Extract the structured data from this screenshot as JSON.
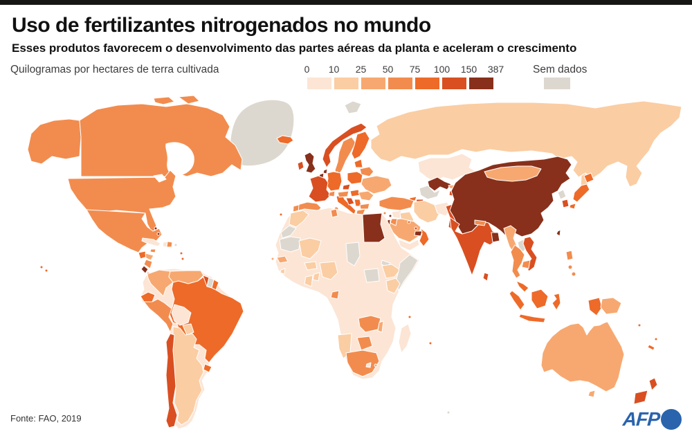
{
  "header": {
    "title": "Uso de fertilizantes nitrogenados no mundo",
    "subtitle": "Esses produtos favorecem o desenvolvimento das partes aéreas da planta e aceleram o crescimento",
    "legend_label": "Quilogramas por hectares de terra cultivada",
    "no_data_label": "Sem dados"
  },
  "footer": {
    "source": "Fonte: FAO, 2019",
    "logo_text": "AFP"
  },
  "brand": {
    "afp_blue": "#2a64ad",
    "bar_black": "#161615"
  },
  "chart_data": {
    "type": "choropleth",
    "title": "Uso de fertilizantes nitrogenados no mundo",
    "unit": "Quilogramas por hectares de terra cultivada",
    "source": "FAO, 2019",
    "scale": {
      "thresholds": [
        0,
        10,
        25,
        50,
        75,
        100,
        150,
        387
      ],
      "tick_labels": [
        "0",
        "10",
        "25",
        "50",
        "75",
        "100",
        "150",
        "387"
      ],
      "colors": [
        "#fce5d5",
        "#fbcda3",
        "#f7a870",
        "#f28c4e",
        "#ee6a28",
        "#d94f21",
        "#88301b"
      ],
      "no_data_color": "#ddd8cf",
      "no_data_label": "Sem dados"
    },
    "regions": {
      "greenland": "nd",
      "svalbard": "nd",
      "russia": 1,
      "sakhalin": 1,
      "canada": 3,
      "alaska": 3,
      "usa": 3,
      "mexico": 3,
      "guatemala": 4,
      "honduras": 2,
      "nicaragua": 3,
      "costa-rica": 6,
      "panama": 3,
      "cuba": 0,
      "jamaica": 3,
      "haiti": 0,
      "dominican-republic": 3,
      "bahamas": 6,
      "puerto-rico": "nd",
      "lesser-antilles": 4,
      "hawaii": 4,
      "south-america-base": 0,
      "colombia": 2,
      "venezuela": 2,
      "guyana": 5,
      "suriname": "nd",
      "french-guiana": 4,
      "ecuador": 4,
      "peru": 3,
      "bolivia": 0,
      "brazil": 4,
      "paraguay": 1,
      "uruguay": 4,
      "argentina": 1,
      "chile": 5,
      "iceland": 4,
      "uk": 6,
      "ireland": 5,
      "norway": 5,
      "sweden": 3,
      "finland": 4,
      "denmark": 4,
      "netherlands": 6,
      "belgium": 6,
      "germany": 4,
      "france": 5,
      "switzerland": 3,
      "austria": 3,
      "czechia": 5,
      "poland": 4,
      "spain": 3,
      "portugal": 3,
      "italy": 4,
      "sicily": 3,
      "sardinia": 3,
      "slovakia-hungary": 4,
      "croatia": 5,
      "serbia": 4,
      "romania": 2,
      "bulgaria": 3,
      "greece": 3,
      "ukraine": 2,
      "belarus": 3,
      "baltics": 4,
      "kazakhstan": 0,
      "uzbekistan": 6,
      "turkmenistan": "nd",
      "kyrgyzstan": 2,
      "tajikistan": 5,
      "georgia": 4,
      "azerbaijan": 5,
      "turkey": 3,
      "syria": 0,
      "iraq": 1,
      "iran": 1,
      "afghanistan": 0,
      "pakistan": 5,
      "saudi-arabia": 2,
      "yemen": 0,
      "oman": 4,
      "uae": 6,
      "qatar": 5,
      "kuwait": 4,
      "jordan": 3,
      "israel": 6,
      "lebanon": 6,
      "cyprus": 3,
      "egypt": 6,
      "india": 5,
      "nepal": 3,
      "bangladesh": 6,
      "sri-lanka": 5,
      "china": 6,
      "mongolia": 2,
      "north-korea": "nd",
      "south-korea": 5,
      "japan": 4,
      "taiwan": 6,
      "myanmar": 2,
      "laos": "nd",
      "thailand": 3,
      "vietnam": 5,
      "cambodia": 3,
      "malaysia": 4,
      "philippines": 3,
      "indonesia": 4,
      "papua-new-guinea": 2,
      "australia": 2,
      "tasmania": 2,
      "new-zealand": 5,
      "new-caledonia": 4,
      "fiji": 4,
      "pacific-islands": 4,
      "africa-base": 0,
      "morocco": 1,
      "western-sahara": "nd",
      "mauritania": "nd",
      "tunisia": 3,
      "mali": 1,
      "chad": "nd",
      "south-sudan": "nd",
      "eritrea": "nd",
      "ethiopia": 1,
      "somalia": "nd",
      "kenya": 1,
      "senegal": 2,
      "sierra-leone": 1,
      "ghana": 1,
      "togo-benin": 1,
      "burkina-faso": 1,
      "nigeria": 1,
      "gabon": 3,
      "zambia": 3,
      "malawi": 2,
      "zimbabwe": 3,
      "namibia": 1,
      "south-africa": 3,
      "lesotho": 0,
      "madagascar": 0,
      "swaziland": 2,
      "canary-islands": 4,
      "cape-verde": 2,
      "comoros": 4,
      "mauritius": 4,
      "kerguelen": "nd"
    },
    "legend_position": "top-center",
    "map_extent": "world"
  }
}
